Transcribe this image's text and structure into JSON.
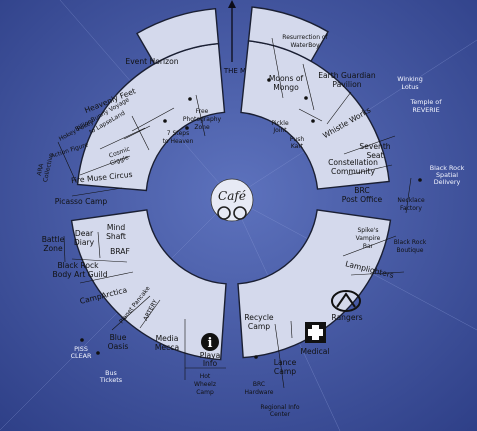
{
  "header": {
    "to_the_man": "TO THE MAN"
  },
  "center": {
    "logo": "Café"
  },
  "camps": {
    "event_horizon": "Event Horizon",
    "heavenly_feet": "Heavenly Feet",
    "billion_bunny_1": "BillionBunny Voyage",
    "billion_bunny_2": "to LapseLand",
    "free_photo_1": "Free",
    "free_photo_2": "Photography",
    "free_photo_3": "Zone",
    "seven_steps_1": "7 Steps",
    "seven_steps_2": "to Heaven",
    "hokey_pokey": "Hokey Pokey",
    "cosmic_giggle_1": "Cosmic",
    "cosmic_giggle_2": "Giggle",
    "action_figure": "Action Figure",
    "ara_collective_1": "ARA",
    "ara_collective_2": "Collective",
    "fire_muse": "Fire Muse Circus",
    "picasso": "Picasso Camp",
    "resurrection_1": "Resurrection of",
    "resurrection_2": "WaterBoy",
    "moons_1": "Moons of",
    "moons_2": "Mongo",
    "earth_guardian_1": "Earth Guardian",
    "earth_guardian_2": "Pavilion",
    "winking_1": "Winking",
    "winking_2": "Lotus",
    "temple_1": "Temple of",
    "temple_2": "REVERIE",
    "pickle_1": "Pickle",
    "pickle_2": "Joint",
    "push_1": "Push",
    "push_2": "Kart",
    "whistle": "Whistle Works",
    "seventh_1": "Seventh",
    "seventh_2": "Seat",
    "constellation_1": "Constellation",
    "constellation_2": "Community",
    "brc_post_1": "BRC",
    "brc_post_2": "Post Office",
    "spatial_1": "Black Rock",
    "spatial_2": "Spatial",
    "spatial_3": "Delivery",
    "necklace_1": "Necklace",
    "necklace_2": "Factory",
    "battle_1": "Battle",
    "battle_2": "Zone",
    "dear_1": "Dear",
    "dear_2": "Diary",
    "mind_1": "Mind",
    "mind_2": "Shaft",
    "braf": "BRAF",
    "brag_1": "Black Rock",
    "brag_2": "Body Art Guild",
    "camparctica": "CampArctica",
    "planet_pancake": "Planet Pancake",
    "artery": "ARTERY",
    "blue_1": "Blue",
    "blue_2": "Oasis",
    "media_1": "Media",
    "media_2": "Mecca",
    "playa_1": "Playa",
    "playa_2": "Info",
    "hotwheelz_1": "Hot",
    "hotwheelz_2": "Wheelz",
    "hotwheelz_3": "Camp",
    "piss_1": "PISS",
    "piss_2": "CLEAR",
    "bus_1": "Bus",
    "bus_2": "Tickets",
    "spikes_1": "Spike's",
    "spikes_2": "Vampire",
    "spikes_3": "Bar",
    "boutique_1": "Black Rock",
    "boutique_2": "Boutique",
    "lamplighters": "Lamplighters",
    "rangers": "Rangers",
    "recycle_1": "Recycle",
    "recycle_2": "Camp",
    "medical": "Medical",
    "lance_1": "Lance",
    "lance_2": "Camp",
    "hardware_1": "BRC",
    "hardware_2": "Hardware",
    "regional_1": "Regional Info",
    "regional_2": "Center"
  },
  "colors": {
    "sky": "#3b4f9e",
    "segment": "#d4d9ec",
    "outline": "#1a1f33"
  },
  "icons": [
    "north-arrow-icon",
    "cafe-logo-icon",
    "info-icon",
    "medical-cross-icon",
    "rangers-logo-icon"
  ]
}
